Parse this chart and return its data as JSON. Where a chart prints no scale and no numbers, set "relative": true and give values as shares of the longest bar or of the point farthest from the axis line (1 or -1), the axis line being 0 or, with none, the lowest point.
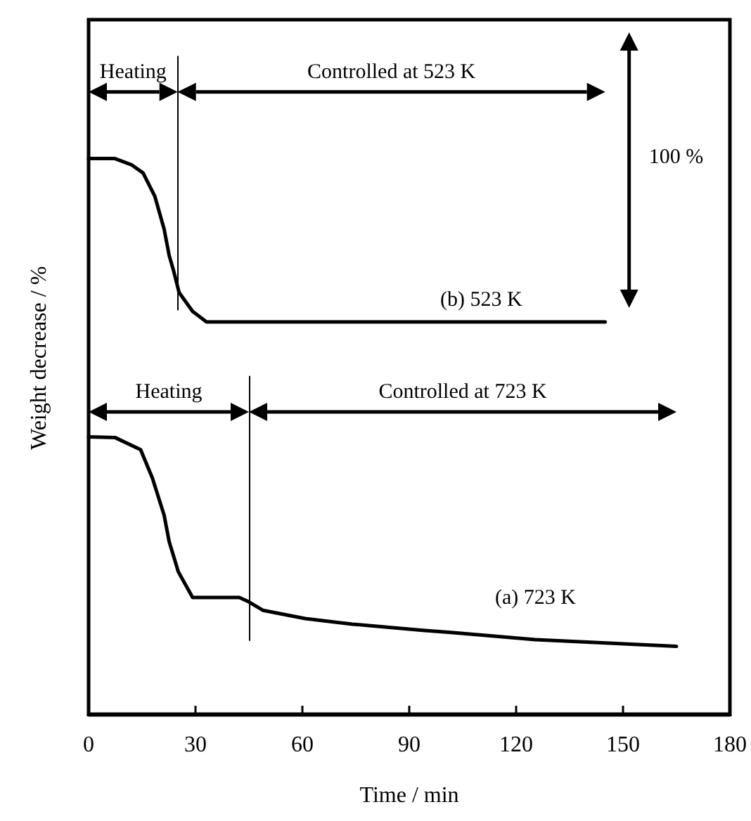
{
  "chart_data": {
    "type": "line",
    "relative": true,
    "xlabel": "Time / min",
    "ylabel": "Weight decrease / %",
    "xlim": [
      0,
      180
    ],
    "xticks": [
      0,
      30,
      60,
      90,
      120,
      150,
      180
    ],
    "grid": false,
    "marker": "none",
    "line_style": "solid",
    "series": [
      {
        "name": "(b) 523 K",
        "color": "#000000",
        "x": [
          0,
          7.4,
          12,
          15.3,
          18.6,
          21.2,
          22.6,
          23.9,
          25.4,
          29.2,
          33.1,
          145
        ],
        "values": [
          1,
          1,
          0.989,
          0.974,
          0.932,
          0.873,
          0.826,
          0.797,
          0.759,
          0.725,
          0.706,
          0.706
        ]
      },
      {
        "name": "(a) 723 K",
        "color": "#000000",
        "x": [
          0,
          7.4,
          14.6,
          17.9,
          21.2,
          22.6,
          25.2,
          29.2,
          42.3,
          45,
          48.9,
          60.8,
          74,
          93.8,
          101.7,
          125.4,
          145.2,
          165
        ],
        "values": [
          0.499,
          0.498,
          0.476,
          0.425,
          0.358,
          0.311,
          0.256,
          0.21,
          0.21,
          0.202,
          0.187,
          0.172,
          0.162,
          0.151,
          0.147,
          0.134,
          0.128,
          0.122
        ]
      }
    ],
    "ref_lines": [
      {
        "axis": "x",
        "value": 25,
        "color": "#000000"
      },
      {
        "axis": "x",
        "value": 45,
        "color": "#000000"
      }
    ],
    "annotations": [
      "Heating",
      "Controlled at 523 K",
      "Heating",
      "Controlled at 723 K",
      "100 %"
    ]
  }
}
